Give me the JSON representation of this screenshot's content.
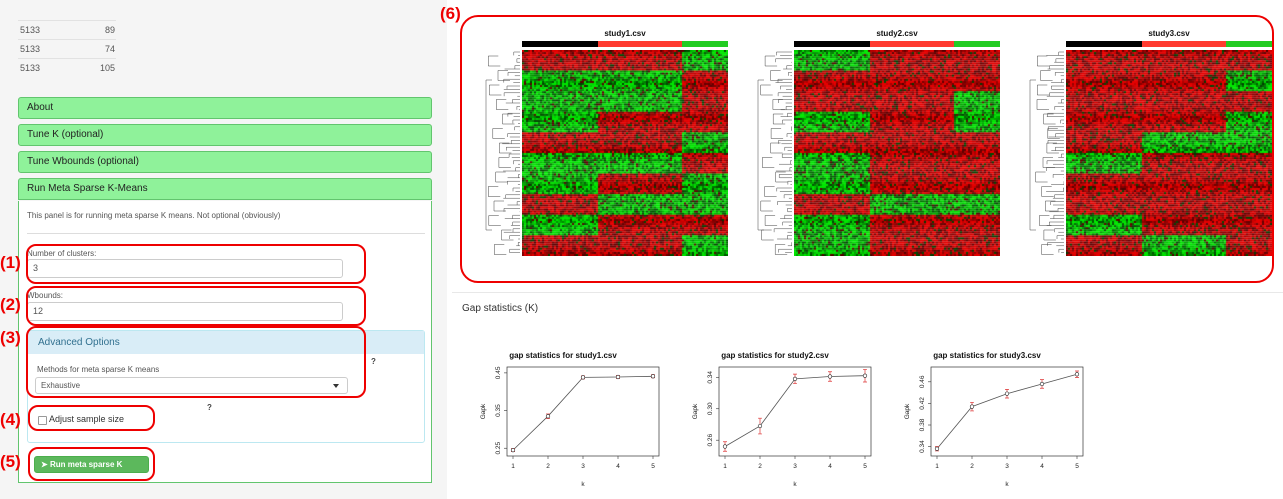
{
  "table": {
    "rows": [
      [
        "5133",
        "89"
      ],
      [
        "5133",
        "74"
      ],
      [
        "5133",
        "105"
      ]
    ]
  },
  "sidebar": {
    "sections": [
      {
        "label": "About"
      },
      {
        "label": "Tune K (optional)"
      },
      {
        "label": "Tune Wbounds (optional)"
      },
      {
        "label": "Run Meta Sparse K-Means"
      }
    ],
    "panel_text": "This panel is for running meta sparse K means. Not optional (obviously)",
    "clusters_label": "Number of clusters:",
    "clusters_value": "3",
    "wbounds_label": "Wbounds:",
    "wbounds_value": "12",
    "advanced_title": "Advanced Options",
    "method_label": "Methods for meta sparse K means",
    "method_value": "Exhaustive",
    "help_mark": "?",
    "adjust_label": "Adjust sample size",
    "run_button": "Run meta sparse K means",
    "run_icon": "paper-plane-icon"
  },
  "annotations": [
    "(1)",
    "(2)",
    "(3)",
    "(4)",
    "(5)",
    "(6)"
  ],
  "heatmaps": [
    {
      "title": "study1.csv",
      "seed": 11
    },
    {
      "title": "study2.csv",
      "seed": 23
    },
    {
      "title": "study3.csv",
      "seed": 37
    }
  ],
  "cluster_colors": [
    "#000000",
    "#ff3b30",
    "#22cc22"
  ],
  "heat_colors": {
    "high": "#ff0000",
    "mid": "#000000",
    "low": "#00ff00"
  },
  "gap_section_title": "Gap statistics (K)",
  "chart_data": [
    {
      "type": "line",
      "title": "gap statistics for study1.csv",
      "xlabel": "k",
      "ylabel": "Gapk",
      "x": [
        1,
        2,
        3,
        4,
        5
      ],
      "y": [
        0.245,
        0.335,
        0.438,
        0.439,
        0.441
      ],
      "err": [
        0.004,
        0.006,
        0.004,
        0.004,
        0.004
      ],
      "ylim": [
        0.24,
        0.455
      ],
      "yticks": [
        0.25,
        0.35,
        0.45
      ]
    },
    {
      "type": "line",
      "title": "gap statistics for study2.csv",
      "xlabel": "k",
      "ylabel": "Gapk",
      "x": [
        1,
        2,
        3,
        4,
        5
      ],
      "y": [
        0.252,
        0.278,
        0.338,
        0.341,
        0.342
      ],
      "err": [
        0.006,
        0.01,
        0.006,
        0.006,
        0.008
      ],
      "ylim": [
        0.245,
        0.348
      ],
      "yticks": [
        0.26,
        0.3,
        0.34
      ]
    },
    {
      "type": "line",
      "title": "gap statistics for study3.csv",
      "xlabel": "k",
      "ylabel": "Gapk",
      "x": [
        1,
        2,
        3,
        4,
        5
      ],
      "y": [
        0.336,
        0.414,
        0.438,
        0.456,
        0.474
      ],
      "err": [
        0.004,
        0.008,
        0.008,
        0.008,
        0.006
      ],
      "ylim": [
        0.33,
        0.48
      ],
      "yticks": [
        0.34,
        0.38,
        0.42,
        0.46
      ]
    }
  ]
}
